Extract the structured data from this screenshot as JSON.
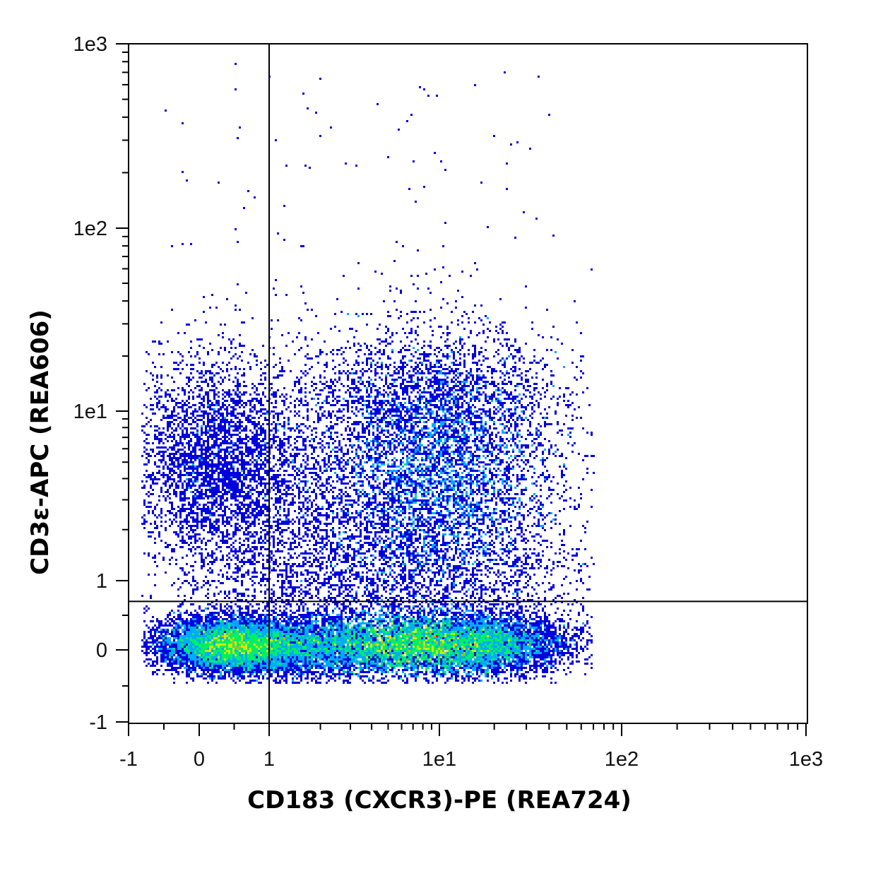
{
  "chart_data": {
    "type": "scatter",
    "subtype": "flow-cytometry-density-dot-plot",
    "title": "",
    "xlabel": "CD183 (CXCR3)-PE (REA724)",
    "ylabel": "CD3ε-APC (REA606)",
    "x_scale": "biexponential",
    "y_scale": "biexponential",
    "xlim": [
      -1,
      1000
    ],
    "ylim": [
      -1,
      1000
    ],
    "x_ticks": [
      {
        "value": -1,
        "label": "-1"
      },
      {
        "value": 0,
        "label": "0"
      },
      {
        "value": 1,
        "label": "1"
      },
      {
        "value": 10,
        "label": "1e1"
      },
      {
        "value": 100,
        "label": "1e2"
      },
      {
        "value": 1000,
        "label": "1e3"
      }
    ],
    "y_ticks": [
      {
        "value": -1,
        "label": "-1"
      },
      {
        "value": 0,
        "label": "0"
      },
      {
        "value": 1,
        "label": "1"
      },
      {
        "value": 10,
        "label": "1e1"
      },
      {
        "value": 100,
        "label": "1e2"
      },
      {
        "value": 1000,
        "label": "1e3"
      }
    ],
    "quadrant_gate": {
      "x": 1,
      "y": 0.7
    },
    "density_colormap": [
      "#0000dd",
      "#00aaff",
      "#00ee66",
      "#ccee00",
      "#ffaa00",
      "#ee0000"
    ],
    "populations": [
      {
        "description_id": "cd183-neg-cd3-neg",
        "x_center": 0.3,
        "y_center": 0.0,
        "relative_size": 0.2
      },
      {
        "description_id": "cd183-pos-cd3-neg",
        "x_center": 6.5,
        "y_center": 0.0,
        "relative_size": 0.35
      },
      {
        "description_id": "cd183-neg-cd3-pos",
        "x_center": 0.4,
        "y_center": 5.0,
        "relative_size": 0.1
      },
      {
        "description_id": "cd183-pos-cd3-pos",
        "x_center": 9.0,
        "y_center": 4.5,
        "relative_size": 0.35
      }
    ]
  }
}
